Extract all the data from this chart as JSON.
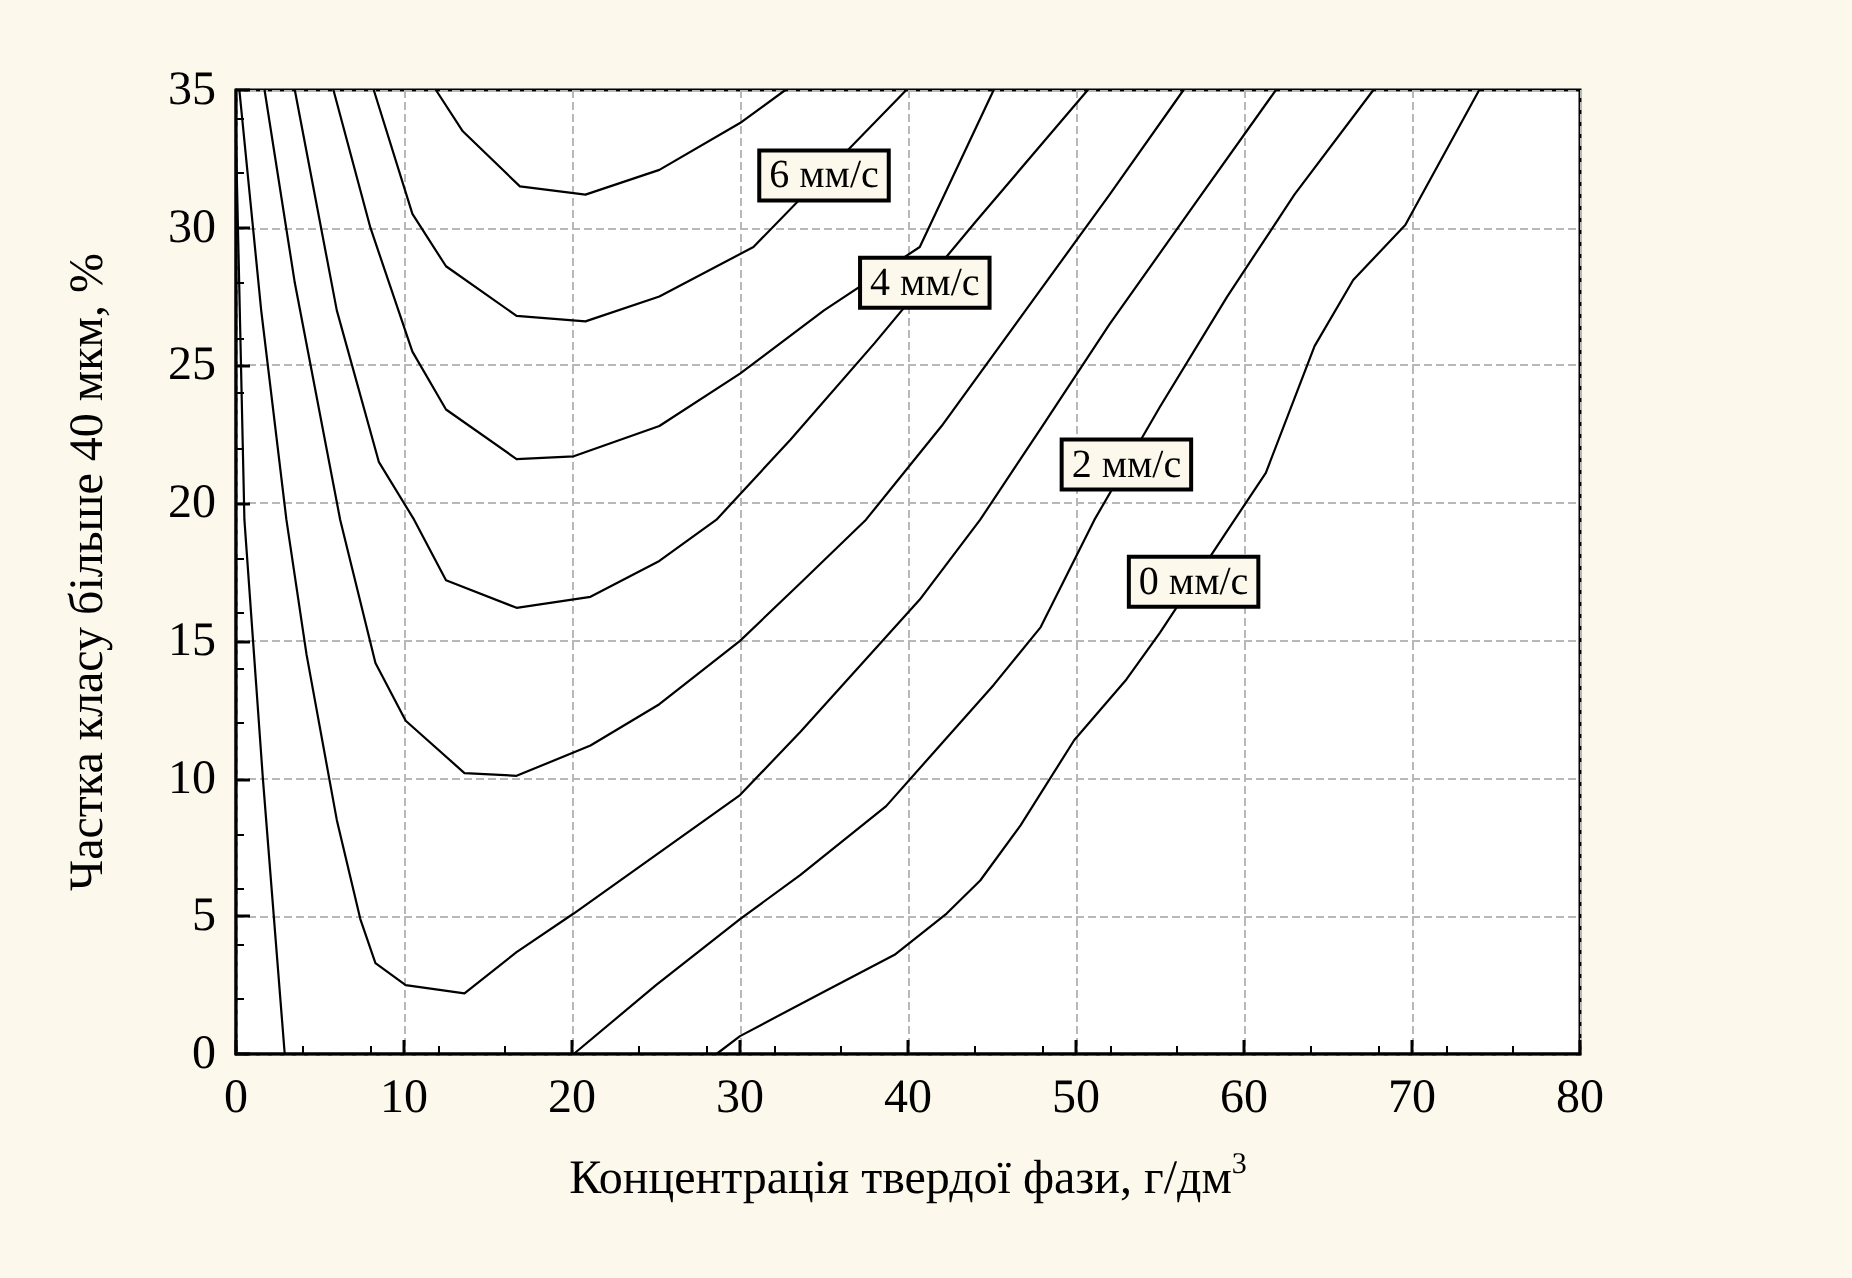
{
  "chart_data": {
    "type": "line",
    "xlabel": "Концентрація твердої фази, г/дм$^{3}$",
    "ylabel": "Частка класу більше 40 мкм, %",
    "xlim": [
      0,
      80
    ],
    "xticks": [
      0,
      10,
      20,
      30,
      40,
      50,
      60,
      70,
      80
    ],
    "ylim": [
      0,
      35
    ],
    "yticks": [
      0,
      5,
      10,
      15,
      20,
      25,
      30,
      35
    ],
    "grid": true,
    "marker": "none",
    "line_style": "solid",
    "annotations": [
      {
        "text": "6 мм/с",
        "x": 35,
        "y": 31.9
      },
      {
        "text": "4 мм/с",
        "x": 41,
        "y": 28.0
      },
      {
        "text": "2 мм/с",
        "x": 53,
        "y": 21.4
      },
      {
        "text": "0 мм/с",
        "x": 57,
        "y": 17.15
      }
    ],
    "series": [
      {
        "color": "#000000",
        "x": [
          28.6,
          30,
          34.8,
          39.2,
          42.3,
          44.3,
          46.7,
          49.9,
          53,
          55,
          58.9,
          61.3,
          64.2,
          66.5,
          69.6,
          74
        ],
        "values": [
          0,
          0.65,
          2.2,
          3.6,
          5.1,
          6.3,
          8.3,
          11.4,
          13.6,
          15.3,
          18.9,
          21.1,
          25.7,
          28.1,
          30.1,
          35
        ]
      },
      {
        "color": "#000000",
        "x": [
          20.1,
          25,
          30,
          33.6,
          38.7,
          41.9,
          45.1,
          47.9,
          51.1,
          55,
          59,
          63,
          67.7
        ],
        "values": [
          0,
          2.5,
          4.9,
          6.5,
          9,
          11.2,
          13.4,
          15.5,
          19.4,
          23.5,
          27.5,
          31.2,
          35
        ]
      },
      {
        "color": "#000000",
        "x": [
          0,
          0.5,
          1.6,
          2.9
        ],
        "values": [
          33.2,
          19.4,
          10,
          0
        ]
      },
      {
        "color": "#000000",
        "x": [
          0.2,
          1.5,
          3,
          4.2,
          6,
          7.4,
          8.3,
          10.1,
          13.6,
          16.7,
          20.1,
          30,
          33.6,
          40.7,
          44.3,
          48,
          52,
          57,
          61.9
        ],
        "values": [
          35,
          27,
          19.4,
          14.5,
          8.5,
          4.9,
          3.3,
          2.5,
          2.2,
          3.7,
          5.1,
          9.4,
          11.7,
          16.5,
          19.4,
          22.8,
          26.5,
          30.8,
          35
        ]
      },
      {
        "color": "#000000",
        "x": [
          1.7,
          3.5,
          6.2,
          8.3,
          10.1,
          13.6,
          16.7,
          21.1,
          25.2,
          30,
          33.6,
          37.5,
          42,
          47,
          52,
          56.4
        ],
        "values": [
          35,
          28,
          19.4,
          14.2,
          12.1,
          10.2,
          10.1,
          11.2,
          12.7,
          15,
          17.1,
          19.4,
          22.8,
          27,
          31.2,
          35
        ]
      },
      {
        "color": "#000000",
        "x": [
          3.5,
          6,
          8.5,
          10.6,
          12.5,
          16.7,
          21.1,
          25.2,
          28.6,
          33,
          38,
          44,
          50.7
        ],
        "values": [
          35,
          27,
          21.5,
          19.4,
          17.2,
          16.2,
          16.6,
          17.9,
          19.4,
          22.3,
          25.8,
          30.2,
          35
        ]
      },
      {
        "color": "#000000",
        "x": [
          5.8,
          8,
          10.5,
          12.5,
          16.7,
          20.1,
          25.2,
          30,
          35,
          40.7,
          45.1
        ],
        "values": [
          35,
          30,
          25.5,
          23.4,
          21.6,
          21.7,
          22.8,
          24.7,
          27,
          29.3,
          35
        ]
      },
      {
        "color": "#000000",
        "x": [
          8.2,
          10.5,
          12.5,
          16.7,
          20.8,
          25.2,
          30.8,
          39.9
        ],
        "values": [
          35,
          30.5,
          28.6,
          26.8,
          26.6,
          27.5,
          29.3,
          35
        ]
      },
      {
        "color": "#000000",
        "x": [
          11.9,
          13.5,
          16.9,
          20.8,
          25.2,
          30,
          32.7
        ],
        "values": [
          35,
          33.5,
          31.5,
          31.2,
          32.1,
          33.8,
          35
        ]
      }
    ]
  }
}
